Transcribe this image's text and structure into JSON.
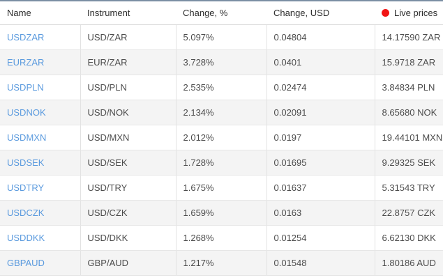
{
  "theme": {
    "accent_line_color": "#7b8fa4",
    "link_color": "#5a9ade",
    "live_dot_color": "#f11414",
    "alt_row_bg": "#f4f4f4"
  },
  "table": {
    "columns": [
      {
        "label": "Name"
      },
      {
        "label": "Instrument"
      },
      {
        "label": "Change, %"
      },
      {
        "label": "Change, USD"
      },
      {
        "label": "Live prices"
      }
    ],
    "rows": [
      {
        "name": "USDZAR",
        "instrument": "USD/ZAR",
        "change_pct": "5.097%",
        "change_usd": "0.04804",
        "live_price": "14.17590 ZAR"
      },
      {
        "name": "EURZAR",
        "instrument": "EUR/ZAR",
        "change_pct": "3.728%",
        "change_usd": "0.0401",
        "live_price": "15.9718 ZAR"
      },
      {
        "name": "USDPLN",
        "instrument": "USD/PLN",
        "change_pct": "2.535%",
        "change_usd": "0.02474",
        "live_price": "3.84834 PLN"
      },
      {
        "name": "USDNOK",
        "instrument": "USD/NOK",
        "change_pct": "2.134%",
        "change_usd": "0.02091",
        "live_price": "8.65680 NOK"
      },
      {
        "name": "USDMXN",
        "instrument": "USD/MXN",
        "change_pct": "2.012%",
        "change_usd": "0.0197",
        "live_price": "19.44101 MXN"
      },
      {
        "name": "USDSEK",
        "instrument": "USD/SEK",
        "change_pct": "1.728%",
        "change_usd": "0.01695",
        "live_price": "9.29325 SEK"
      },
      {
        "name": "USDTRY",
        "instrument": "USD/TRY",
        "change_pct": "1.675%",
        "change_usd": "0.01637",
        "live_price": "5.31543 TRY"
      },
      {
        "name": "USDCZK",
        "instrument": "USD/CZK",
        "change_pct": "1.659%",
        "change_usd": "0.0163",
        "live_price": "22.8757 CZK"
      },
      {
        "name": "USDDKK",
        "instrument": "USD/DKK",
        "change_pct": "1.268%",
        "change_usd": "0.01254",
        "live_price": "6.62130 DKK"
      },
      {
        "name": "GBPAUD",
        "instrument": "GBP/AUD",
        "change_pct": "1.217%",
        "change_usd": "0.01548",
        "live_price": "1.80186 AUD"
      }
    ]
  }
}
